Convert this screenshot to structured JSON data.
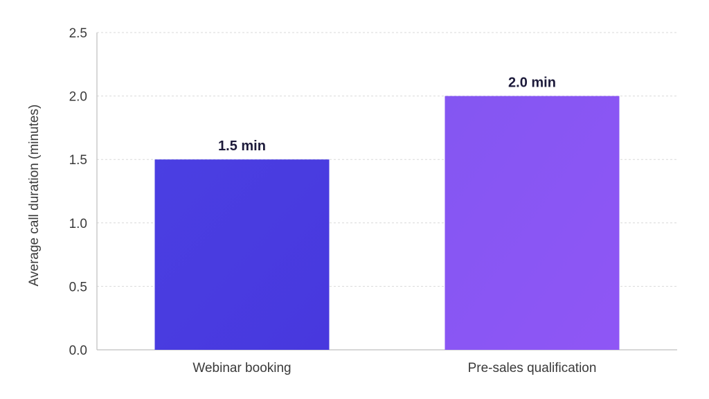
{
  "chart_data": {
    "type": "bar",
    "categories": [
      "Webinar booking",
      "Pre-sales qualification"
    ],
    "values": [
      1.5,
      2.0
    ],
    "data_labels": [
      "1.5 min",
      "2.0 min"
    ],
    "title": "",
    "xlabel": "",
    "ylabel": "Average call duration (minutes)",
    "ylim": [
      0,
      2.5
    ],
    "yticks": [
      "0.0",
      "0.5",
      "1.0",
      "1.5",
      "2.0",
      "2.5"
    ],
    "ytick_values": [
      0,
      0.5,
      1.0,
      1.5,
      2.0,
      2.5
    ],
    "grid": true,
    "legend": "none",
    "colors": [
      "#4a3fe0",
      "#8a55f4"
    ]
  }
}
